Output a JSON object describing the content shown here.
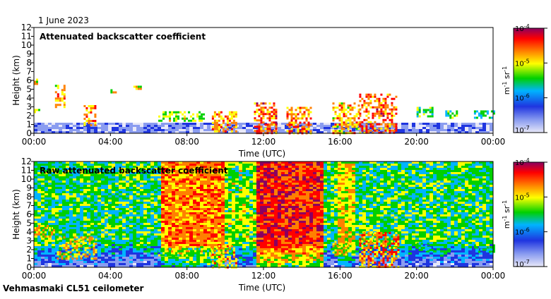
{
  "header": {
    "date": "1 June 2023"
  },
  "footer": {
    "instrument": "Vehmasmaki CL51 ceilometer"
  },
  "colorbar": {
    "unit_parts": [
      "m",
      "-1",
      " sr",
      "-1"
    ],
    "ticks": [
      {
        "mantissa": "10",
        "exp": "-4",
        "value": 0.0001
      },
      {
        "mantissa": "10",
        "exp": "-5",
        "value": 1e-05
      },
      {
        "mantissa": "10",
        "exp": "-6",
        "value": 1e-06
      },
      {
        "mantissa": "10",
        "exp": "-7",
        "value": 1e-07
      }
    ],
    "scale": "log",
    "colors": [
      "#e8e8f8",
      "#8a9cf0",
      "#1f35e0",
      "#00b4ff",
      "#00d000",
      "#ffff00",
      "#ff8000",
      "#ff0000",
      "#8b0060"
    ]
  },
  "chart_data": [
    {
      "type": "heatmap",
      "title": "Attenuated backscatter coefficient",
      "xlabel": "Time (UTC)",
      "ylabel": "Height (km)",
      "xticks": [
        "00:00",
        "04:00",
        "08:00",
        "12:00",
        "16:00",
        "20:00",
        "00:00"
      ],
      "yticks": [
        "0",
        "1",
        "2",
        "3",
        "4",
        "5",
        "6",
        "7",
        "8",
        "9",
        "10",
        "11",
        "12"
      ],
      "xlim_hours": [
        0,
        24
      ],
      "ylim": [
        0,
        12
      ],
      "background": "#ffffff",
      "features": [
        {
          "start_h": 0.0,
          "end_h": 0.3,
          "base_km": 2.5,
          "top_km": 3.0,
          "level": 0.7
        },
        {
          "start_h": 0.0,
          "end_h": 0.2,
          "base_km": 5.5,
          "top_km": 6.2,
          "level": 0.8
        },
        {
          "start_h": 1.1,
          "end_h": 1.6,
          "base_km": 3.0,
          "top_km": 5.5,
          "level": 0.85
        },
        {
          "start_h": 2.6,
          "end_h": 3.2,
          "base_km": 0.8,
          "top_km": 3.2,
          "level": 0.9
        },
        {
          "start_h": 4.0,
          "end_h": 4.3,
          "base_km": 4.6,
          "top_km": 5.0,
          "level": 0.75
        },
        {
          "start_h": 5.2,
          "end_h": 5.6,
          "base_km": 5.0,
          "top_km": 5.4,
          "level": 0.75
        },
        {
          "start_h": 6.5,
          "end_h": 9.0,
          "base_km": 1.5,
          "top_km": 2.5,
          "level": 0.7
        },
        {
          "start_h": 9.3,
          "end_h": 10.6,
          "base_km": 0.2,
          "top_km": 2.5,
          "level": 0.85
        },
        {
          "start_h": 11.5,
          "end_h": 12.7,
          "base_km": 0.0,
          "top_km": 3.5,
          "level": 0.95
        },
        {
          "start_h": 13.2,
          "end_h": 14.5,
          "base_km": 0.0,
          "top_km": 3.0,
          "level": 0.9
        },
        {
          "start_h": 15.6,
          "end_h": 17.0,
          "base_km": 0.0,
          "top_km": 3.5,
          "level": 0.85
        },
        {
          "start_h": 17.0,
          "end_h": 18.9,
          "base_km": 0.0,
          "top_km": 4.5,
          "level": 0.95
        },
        {
          "start_h": 20.0,
          "end_h": 20.8,
          "base_km": 2.0,
          "top_km": 3.0,
          "level": 0.6
        },
        {
          "start_h": 21.5,
          "end_h": 22.1,
          "base_km": 1.8,
          "top_km": 2.6,
          "level": 0.6
        },
        {
          "start_h": 23.0,
          "end_h": 24.0,
          "base_km": 1.8,
          "top_km": 2.6,
          "level": 0.55
        }
      ]
    },
    {
      "type": "heatmap",
      "title": "Raw attenuated backscatter coefficient",
      "xlabel": "Time (UTC)",
      "ylabel": "Height (km)",
      "xticks": [
        "00:00",
        "04:00",
        "08:00",
        "12:00",
        "16:00",
        "20:00",
        "00:00"
      ],
      "yticks": [
        "0",
        "1",
        "2",
        "3",
        "4",
        "5",
        "6",
        "7",
        "8",
        "9",
        "10",
        "11",
        "12"
      ],
      "xlim_hours": [
        0,
        24
      ],
      "ylim": [
        0,
        12
      ],
      "background": "green-noise",
      "noisy_bands": [
        {
          "start_h": 6.5,
          "end_h": 9.8,
          "level": 0.75
        },
        {
          "start_h": 9.8,
          "end_h": 11.5,
          "level": 0.55
        },
        {
          "start_h": 11.5,
          "end_h": 12.8,
          "level": 0.9
        },
        {
          "start_h": 12.8,
          "end_h": 15.0,
          "level": 0.85
        },
        {
          "start_h": 15.7,
          "end_h": 16.7,
          "level": 0.65
        }
      ],
      "features": [
        {
          "start_h": 0.0,
          "end_h": 1.0,
          "base_km": 3.5,
          "top_km": 4.8,
          "level": 0.8
        },
        {
          "start_h": 1.2,
          "end_h": 3.2,
          "base_km": 1.0,
          "top_km": 3.5,
          "level": 0.8
        },
        {
          "start_h": 3.8,
          "end_h": 4.4,
          "base_km": 4.6,
          "top_km": 5.0,
          "level": 0.7
        },
        {
          "start_h": 6.5,
          "end_h": 9.5,
          "base_km": 1.3,
          "top_km": 2.2,
          "level": 0.6
        },
        {
          "start_h": 9.3,
          "end_h": 10.6,
          "base_km": 0.0,
          "top_km": 2.5,
          "level": 0.85
        },
        {
          "start_h": 15.6,
          "end_h": 16.8,
          "base_km": 1.5,
          "top_km": 3.0,
          "level": 0.8
        },
        {
          "start_h": 17.0,
          "end_h": 19.0,
          "base_km": 0.0,
          "top_km": 4.0,
          "level": 0.9
        },
        {
          "start_h": 20.0,
          "end_h": 20.8,
          "base_km": 2.0,
          "top_km": 2.8,
          "level": 0.55
        },
        {
          "start_h": 23.0,
          "end_h": 24.0,
          "base_km": 1.8,
          "top_km": 2.6,
          "level": 0.55
        }
      ]
    }
  ]
}
